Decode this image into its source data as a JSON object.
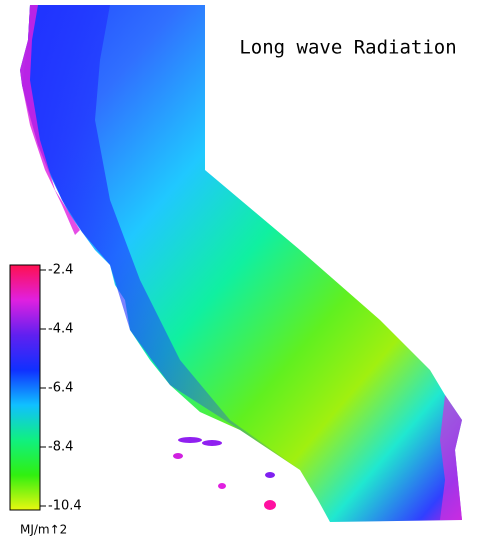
{
  "title": "Long wave Radiation",
  "colorbar": {
    "label": "MJ/m↑2",
    "lim": [
      -10.4,
      -2.4
    ],
    "ticks": [
      -2.4,
      -4.4,
      -6.4,
      -8.4,
      -10.4
    ],
    "colors": [
      "#ff1050",
      "#e020e0",
      "#6020f0",
      "#1030ff",
      "#10c0ff",
      "#10f080",
      "#30f010",
      "#e8f810"
    ]
  }
}
